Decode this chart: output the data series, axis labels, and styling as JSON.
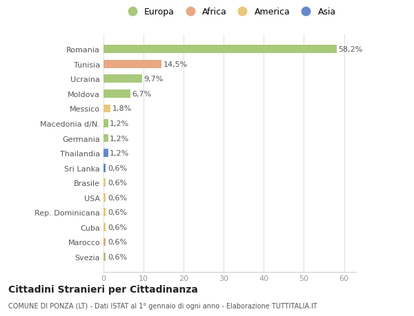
{
  "countries": [
    "Romania",
    "Tunisia",
    "Ucraina",
    "Moldova",
    "Messico",
    "Macedonia d/N.",
    "Germania",
    "Thailandia",
    "Sri Lanka",
    "Brasile",
    "USA",
    "Rep. Dominicana",
    "Cuba",
    "Marocco",
    "Svezia"
  ],
  "values": [
    58.2,
    14.5,
    9.7,
    6.7,
    1.8,
    1.2,
    1.2,
    1.2,
    0.6,
    0.6,
    0.6,
    0.6,
    0.6,
    0.6,
    0.6
  ],
  "labels": [
    "58,2%",
    "14,5%",
    "9,7%",
    "6,7%",
    "1,8%",
    "1,2%",
    "1,2%",
    "1,2%",
    "0,6%",
    "0,6%",
    "0,6%",
    "0,6%",
    "0,6%",
    "0,6%",
    "0,6%"
  ],
  "categories": [
    "Europa",
    "Africa",
    "Europa",
    "Europa",
    "America",
    "Europa",
    "Europa",
    "Asia",
    "Asia",
    "America",
    "America",
    "America",
    "America",
    "Africa",
    "Europa"
  ],
  "color_map": {
    "Europa": "#a8c87a",
    "Africa": "#e8a882",
    "America": "#e8c87a",
    "Asia": "#6688cc"
  },
  "legend_order": [
    "Europa",
    "Africa",
    "America",
    "Asia"
  ],
  "legend_colors": [
    "#a8c87a",
    "#e8a882",
    "#e8c87a",
    "#6688cc"
  ],
  "title": "Cittadini Stranieri per Cittadinanza",
  "subtitle": "COMUNE DI PONZA (LT) - Dati ISTAT al 1° gennaio di ogni anno - Elaborazione TUTTITALIA.IT",
  "xlim": [
    0,
    63
  ],
  "xticks": [
    0,
    10,
    20,
    30,
    40,
    50,
    60
  ],
  "bg_color": "#ffffff",
  "bar_height": 0.55,
  "grid_color": "#e0e0e0",
  "label_fontsize": 8,
  "ytick_fontsize": 8,
  "xtick_fontsize": 8
}
